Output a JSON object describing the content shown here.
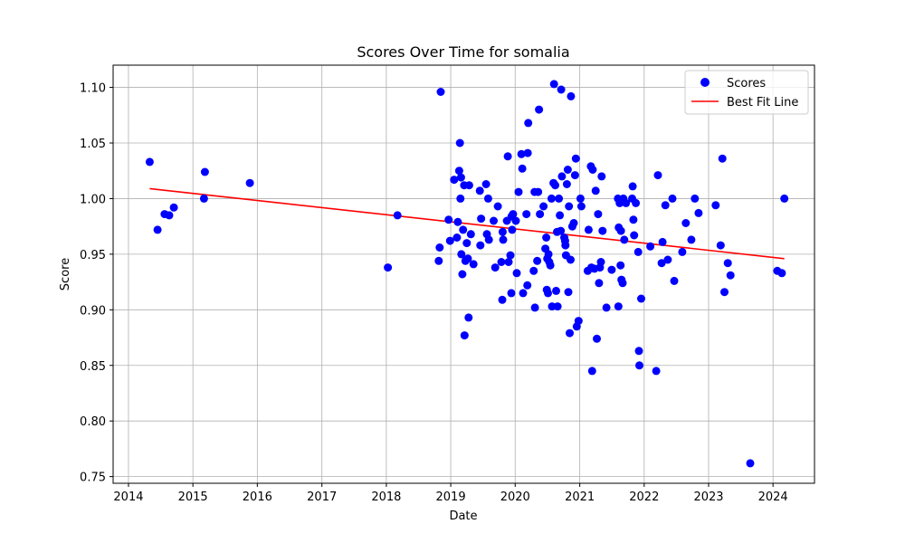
{
  "chart_data": {
    "type": "scatter",
    "title": "Scores Over Time for somalia",
    "xlabel": "Date",
    "ylabel": "Score",
    "xlim": [
      "2013-10-06",
      "2024-08-23"
    ],
    "ylim": [
      0.744,
      1.12
    ],
    "x_ticks": [
      "2014",
      "2015",
      "2016",
      "2017",
      "2018",
      "2019",
      "2020",
      "2021",
      "2022",
      "2023",
      "2024"
    ],
    "y_ticks": [
      "0.75",
      "0.80",
      "0.85",
      "0.90",
      "0.95",
      "1.00",
      "1.05",
      "1.10"
    ],
    "grid": true,
    "legend_position": "top-right",
    "colors": {
      "scores": "#0000ff",
      "fit": "#ff0000",
      "grid": "#b0b0b0"
    },
    "series": [
      {
        "name": "Scores",
        "kind": "scatter",
        "points": [
          [
            "2014-05-01",
            1.033
          ],
          [
            "2014-06-15",
            0.972
          ],
          [
            "2014-07-25",
            0.986
          ],
          [
            "2014-08-20",
            0.985
          ],
          [
            "2014-09-15",
            0.992
          ],
          [
            "2015-03-05",
            1.0
          ],
          [
            "2015-03-10",
            1.024
          ],
          [
            "2015-11-20",
            1.014
          ],
          [
            "2018-01-10",
            0.938
          ],
          [
            "2018-03-05",
            0.985
          ],
          [
            "2018-10-25",
            0.944
          ],
          [
            "2018-10-30",
            0.956
          ],
          [
            "2018-11-05",
            1.096
          ],
          [
            "2018-12-20",
            0.981
          ],
          [
            "2018-12-28",
            0.962
          ],
          [
            "2019-01-20",
            1.017
          ],
          [
            "2019-02-05",
            0.965
          ],
          [
            "2019-02-10",
            0.979
          ],
          [
            "2019-02-18",
            1.025
          ],
          [
            "2019-02-22",
            1.05
          ],
          [
            "2019-02-25",
            1.0
          ],
          [
            "2019-02-28",
            1.019
          ],
          [
            "2019-03-02",
            0.95
          ],
          [
            "2019-03-08",
            0.932
          ],
          [
            "2019-03-12",
            0.972
          ],
          [
            "2019-03-18",
            1.012
          ],
          [
            "2019-03-20",
            0.877
          ],
          [
            "2019-03-25",
            0.944
          ],
          [
            "2019-04-02",
            0.96
          ],
          [
            "2019-04-08",
            0.946
          ],
          [
            "2019-04-12",
            0.893
          ],
          [
            "2019-04-15",
            1.012
          ],
          [
            "2019-04-25",
            0.968
          ],
          [
            "2019-05-10",
            0.941
          ],
          [
            "2019-06-15",
            1.007
          ],
          [
            "2019-06-18",
            0.958
          ],
          [
            "2019-06-22",
            0.982
          ],
          [
            "2019-07-20",
            1.013
          ],
          [
            "2019-07-25",
            0.968
          ],
          [
            "2019-08-01",
            1.0
          ],
          [
            "2019-08-05",
            0.963
          ],
          [
            "2019-09-01",
            0.98
          ],
          [
            "2019-09-10",
            0.938
          ],
          [
            "2019-09-25",
            0.993
          ],
          [
            "2019-10-15",
            0.943
          ],
          [
            "2019-10-20",
            0.909
          ],
          [
            "2019-10-22",
            0.97
          ],
          [
            "2019-10-25",
            0.963
          ],
          [
            "2019-11-15",
            0.98
          ],
          [
            "2019-11-20",
            1.038
          ],
          [
            "2019-11-25",
            0.943
          ],
          [
            "2019-12-05",
            0.949
          ],
          [
            "2019-12-10",
            0.915
          ],
          [
            "2019-12-12",
            0.984
          ],
          [
            "2019-12-15",
            0.972
          ],
          [
            "2019-12-20",
            0.986
          ],
          [
            "2020-01-05",
            0.98
          ],
          [
            "2020-01-10",
            0.933
          ],
          [
            "2020-01-20",
            1.006
          ],
          [
            "2020-02-05",
            1.04
          ],
          [
            "2020-02-10",
            1.027
          ],
          [
            "2020-02-15",
            0.915
          ],
          [
            "2020-03-05",
            0.986
          ],
          [
            "2020-03-10",
            0.922
          ],
          [
            "2020-03-12",
            1.041
          ],
          [
            "2020-03-15",
            1.068
          ],
          [
            "2020-04-15",
            0.935
          ],
          [
            "2020-04-20",
            1.006
          ],
          [
            "2020-04-22",
            0.902
          ],
          [
            "2020-05-05",
            0.944
          ],
          [
            "2020-05-10",
            1.006
          ],
          [
            "2020-05-15",
            1.08
          ],
          [
            "2020-05-20",
            0.986
          ],
          [
            "2020-06-10",
            0.993
          ],
          [
            "2020-06-20",
            0.955
          ],
          [
            "2020-06-25",
            0.965
          ],
          [
            "2020-06-28",
            0.918
          ],
          [
            "2020-07-01",
            0.946
          ],
          [
            "2020-07-05",
            0.915
          ],
          [
            "2020-07-08",
            0.95
          ],
          [
            "2020-07-12",
            0.943
          ],
          [
            "2020-07-18",
            0.94
          ],
          [
            "2020-07-25",
            1.0
          ],
          [
            "2020-07-28",
            0.903
          ],
          [
            "2020-08-05",
            1.014
          ],
          [
            "2020-08-08",
            1.103
          ],
          [
            "2020-08-15",
            1.012
          ],
          [
            "2020-08-20",
            0.917
          ],
          [
            "2020-08-25",
            0.97
          ],
          [
            "2020-08-28",
            0.903
          ],
          [
            "2020-09-05",
            1.0
          ],
          [
            "2020-09-10",
            0.985
          ],
          [
            "2020-09-15",
            0.971
          ],
          [
            "2020-09-18",
            1.098
          ],
          [
            "2020-09-22",
            1.02
          ],
          [
            "2020-10-05",
            0.965
          ],
          [
            "2020-10-10",
            0.962
          ],
          [
            "2020-10-12",
            0.958
          ],
          [
            "2020-10-15",
            0.949
          ],
          [
            "2020-10-20",
            1.013
          ],
          [
            "2020-10-25",
            1.026
          ],
          [
            "2020-10-28",
            0.916
          ],
          [
            "2020-11-01",
            0.993
          ],
          [
            "2020-11-05",
            0.879
          ],
          [
            "2020-11-10",
            0.945
          ],
          [
            "2020-11-12",
            1.092
          ],
          [
            "2020-11-20",
            0.975
          ],
          [
            "2020-11-28",
            0.978
          ],
          [
            "2020-12-05",
            1.021
          ],
          [
            "2020-12-10",
            1.036
          ],
          [
            "2020-12-15",
            0.885
          ],
          [
            "2020-12-25",
            0.89
          ],
          [
            "2021-01-05",
            1.0
          ],
          [
            "2021-01-10",
            0.993
          ],
          [
            "2021-02-15",
            0.935
          ],
          [
            "2021-02-20",
            0.972
          ],
          [
            "2021-03-05",
            1.029
          ],
          [
            "2021-03-08",
            0.938
          ],
          [
            "2021-03-12",
            0.845
          ],
          [
            "2021-03-15",
            1.026
          ],
          [
            "2021-03-25",
            0.937
          ],
          [
            "2021-04-01",
            1.007
          ],
          [
            "2021-04-08",
            0.874
          ],
          [
            "2021-04-15",
            0.986
          ],
          [
            "2021-04-20",
            0.924
          ],
          [
            "2021-04-25",
            0.938
          ],
          [
            "2021-05-01",
            0.943
          ],
          [
            "2021-05-05",
            1.02
          ],
          [
            "2021-05-10",
            0.971
          ],
          [
            "2021-06-01",
            0.902
          ],
          [
            "2021-07-01",
            0.936
          ],
          [
            "2021-08-05",
            1.0
          ],
          [
            "2021-08-08",
            0.903
          ],
          [
            "2021-08-10",
            0.974
          ],
          [
            "2021-08-15",
            0.996
          ],
          [
            "2021-08-20",
            0.94
          ],
          [
            "2021-08-22",
            0.971
          ],
          [
            "2021-08-25",
            0.927
          ],
          [
            "2021-09-01",
            0.924
          ],
          [
            "2021-09-05",
            1.0
          ],
          [
            "2021-09-10",
            0.963
          ],
          [
            "2021-09-20",
            0.996
          ],
          [
            "2021-10-25",
            1.0
          ],
          [
            "2021-10-28",
            1.011
          ],
          [
            "2021-11-01",
            0.981
          ],
          [
            "2021-11-05",
            0.967
          ],
          [
            "2021-11-15",
            0.996
          ],
          [
            "2021-11-28",
            0.952
          ],
          [
            "2021-12-02",
            0.863
          ],
          [
            "2021-12-05",
            0.85
          ],
          [
            "2021-12-15",
            0.91
          ],
          [
            "2022-02-05",
            0.957
          ],
          [
            "2022-03-10",
            0.845
          ],
          [
            "2022-03-20",
            1.021
          ],
          [
            "2022-04-10",
            0.942
          ],
          [
            "2022-04-15",
            0.961
          ],
          [
            "2022-05-01",
            0.994
          ],
          [
            "2022-05-15",
            0.945
          ],
          [
            "2022-06-10",
            1.0
          ],
          [
            "2022-06-20",
            0.926
          ],
          [
            "2022-08-05",
            0.952
          ],
          [
            "2022-08-25",
            0.978
          ],
          [
            "2022-09-25",
            0.963
          ],
          [
            "2022-10-15",
            1.0
          ],
          [
            "2022-11-05",
            0.987
          ],
          [
            "2023-02-10",
            0.994
          ],
          [
            "2023-03-10",
            0.958
          ],
          [
            "2023-03-20",
            1.036
          ],
          [
            "2023-04-01",
            0.916
          ],
          [
            "2023-04-20",
            0.942
          ],
          [
            "2023-05-05",
            0.931
          ],
          [
            "2023-08-25",
            0.762
          ],
          [
            "2024-01-25",
            0.935
          ],
          [
            "2024-02-20",
            0.933
          ],
          [
            "2024-03-05",
            1.0
          ]
        ]
      },
      {
        "name": "Best Fit Line",
        "kind": "line",
        "points": [
          [
            "2014-05-01",
            1.009
          ],
          [
            "2024-03-05",
            0.946
          ]
        ]
      }
    ]
  }
}
